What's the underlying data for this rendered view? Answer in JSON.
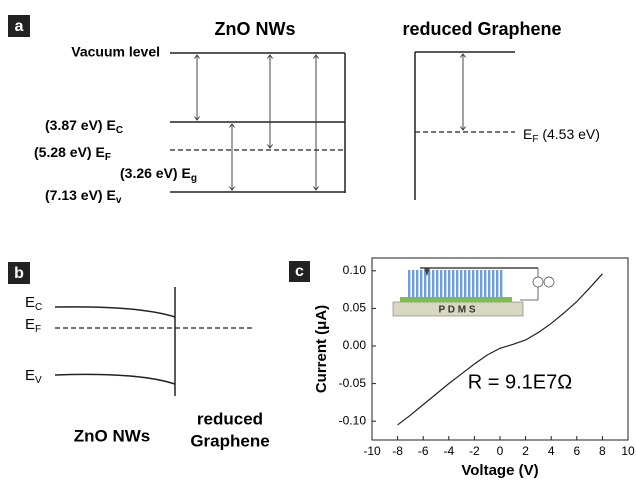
{
  "panel_a": {
    "label": "a",
    "zno_title": "ZnO NWs",
    "graphene_title": "reduced Graphene",
    "vacuum": "Vacuum level",
    "ec": {
      "text": "(3.87 eV) E",
      "sub": "C"
    },
    "ef": {
      "text": "(5.28 eV) E",
      "sub": "F"
    },
    "eg": {
      "text": "(3.26 eV) E",
      "sub": "g"
    },
    "ev": {
      "text": "(7.13 eV) E",
      "sub": "v"
    },
    "graphene_ef": {
      "pre": "E",
      "sub": "F",
      "post": " (4.53 eV)"
    }
  },
  "panel_b": {
    "label": "b",
    "ec": {
      "text": "E",
      "sub": "C"
    },
    "ef": {
      "text": "E",
      "sub": "F"
    },
    "ev": {
      "text": "E",
      "sub": "V"
    },
    "zno": "ZnO NWs",
    "graphene_1": "reduced",
    "graphene_2": "Graphene"
  },
  "chart_data": {
    "type": "line",
    "panel_label": "c",
    "xlabel": "Voltage (V)",
    "ylabel": "Current (μA)",
    "annotation": "R = 9.1E7Ω",
    "inset_label": "P D M S",
    "x": [
      -8,
      -7,
      -6,
      -5,
      -4,
      -3,
      -2,
      -1,
      0,
      1,
      2,
      3,
      4,
      5,
      6,
      7,
      8
    ],
    "values": [
      -0.105,
      -0.092,
      -0.078,
      -0.064,
      -0.05,
      -0.037,
      -0.024,
      -0.012,
      -0.003,
      0.002,
      0.008,
      0.018,
      0.03,
      0.044,
      0.059,
      0.077,
      0.096
    ],
    "color": "#222222",
    "xlim": [
      -10,
      10
    ],
    "xticks": [
      -10,
      -8,
      -6,
      -4,
      -2,
      0,
      2,
      4,
      6,
      8,
      10
    ],
    "ylim": [
      -0.125,
      0.117
    ],
    "yticks": [
      {
        "value": -0.1,
        "label": "-0.10"
      },
      -0.05,
      {
        "value": 0,
        "label": "0.00"
      },
      0.05,
      {
        "value": 0.1,
        "label": "0.10"
      }
    ]
  }
}
